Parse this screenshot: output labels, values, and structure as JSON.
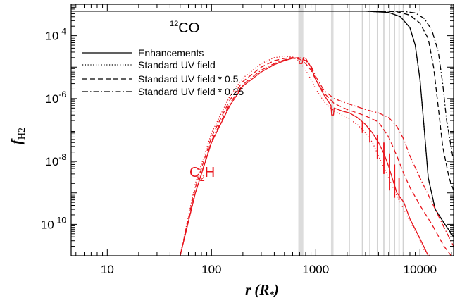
{
  "chart_data": {
    "type": "line",
    "xscale": "log",
    "yscale": "log",
    "xlim": [
      4.5,
      21000
    ],
    "ylim": [
      1e-11,
      0.001
    ],
    "xlabel": "r (R*)",
    "ylabel": "fH2",
    "xlabel_main": "r",
    "xlabel_paren_open": "(",
    "xlabel_sym": "R",
    "xlabel_sub": "*",
    "xlabel_paren_close": ")",
    "ylabel_main": "f",
    "ylabel_sub": "H2",
    "x_ticks": [
      {
        "value": 10,
        "label": "10"
      },
      {
        "value": 100,
        "label": "100"
      },
      {
        "value": 1000,
        "label": "1000"
      },
      {
        "value": 10000,
        "label": "10000"
      }
    ],
    "y_ticks": [
      {
        "value": 1e-10,
        "base": "10",
        "exp": "-10"
      },
      {
        "value": 1e-08,
        "base": "10",
        "exp": "-8"
      },
      {
        "value": 1e-06,
        "base": "10",
        "exp": "-6"
      },
      {
        "value": 0.0001,
        "base": "10",
        "exp": "-4"
      }
    ],
    "annotations": {
      "co_label_sup": "12",
      "co_label_main": "CO",
      "c2h_label_main": "C",
      "c2h_label_sub": "2",
      "c2h_label_end": "H",
      "c2h_color": "#e8141c",
      "co_color": "#000000"
    },
    "legend": {
      "placement": "top-left",
      "entries": [
        {
          "label": "Enhancements",
          "dash": "solid"
        },
        {
          "label": "Standard UV field",
          "dash": "dotted"
        },
        {
          "label": "Standard UV field * 0.5",
          "dash": "dashed"
        },
        {
          "label": "Standard UV field * 0.25",
          "dash": "dashdot"
        }
      ]
    },
    "shaded_bands": [
      [
        680,
        760
      ],
      [
        1400,
        1480
      ]
    ],
    "vertical_lines": [
      2100,
      2800,
      3300,
      3900,
      4500,
      5100,
      5700,
      6300,
      6900
    ],
    "series": [
      {
        "species": "12CO",
        "dash": "solid",
        "color": "#000000",
        "points": [
          [
            4.5,
            0.0006
          ],
          [
            3000,
            0.0006
          ],
          [
            5000,
            0.00055
          ],
          [
            6500,
            0.0004
          ],
          [
            8000,
            0.00018
          ],
          [
            9000,
            5e-05
          ],
          [
            10000,
            4e-06
          ],
          [
            11000,
            1e-07
          ],
          [
            12000,
            3e-09
          ],
          [
            14000,
            3e-10
          ],
          [
            17000,
            1.1e-10
          ],
          [
            21000,
            4e-11
          ]
        ]
      },
      {
        "species": "12CO",
        "dash": "dotted",
        "color": "#000000",
        "points": [
          [
            4.5,
            0.0006
          ],
          [
            3000,
            0.0006
          ],
          [
            5000,
            0.00055
          ],
          [
            6500,
            0.0004
          ],
          [
            8000,
            0.00018
          ],
          [
            9000,
            5e-05
          ],
          [
            10000,
            4e-06
          ],
          [
            11000,
            1e-07
          ],
          [
            12000,
            3e-09
          ],
          [
            14000,
            3e-10
          ],
          [
            17000,
            1.1e-10
          ],
          [
            21000,
            4e-11
          ]
        ]
      },
      {
        "species": "12CO",
        "dash": "dashed",
        "color": "#000000",
        "points": [
          [
            4.5,
            0.0006
          ],
          [
            4000,
            0.0006
          ],
          [
            6000,
            0.00058
          ],
          [
            8000,
            0.00045
          ],
          [
            10000,
            0.00025
          ],
          [
            12000,
            8e-05
          ],
          [
            13500,
            1e-05
          ],
          [
            15000,
            5e-07
          ],
          [
            16500,
            3e-08
          ],
          [
            19000,
            3e-09
          ],
          [
            21000,
            1.2e-09
          ]
        ]
      },
      {
        "species": "12CO",
        "dash": "dashdot",
        "color": "#000000",
        "points": [
          [
            4.5,
            0.0006
          ],
          [
            5000,
            0.0006
          ],
          [
            7000,
            0.00059
          ],
          [
            9000,
            0.00053
          ],
          [
            11000,
            0.00035
          ],
          [
            13000,
            0.00015
          ],
          [
            15000,
            3e-05
          ],
          [
            16500,
            3e-06
          ],
          [
            18000,
            2e-07
          ],
          [
            21000,
            1e-08
          ]
        ]
      },
      {
        "species": "C2H",
        "dash": "solid",
        "color": "#e8141c",
        "points": [
          [
            50,
            1e-11
          ],
          [
            70,
            1e-09
          ],
          [
            100,
            4e-08
          ],
          [
            150,
            6e-07
          ],
          [
            200,
            2.5e-06
          ],
          [
            300,
            7e-06
          ],
          [
            400,
            1.2e-05
          ],
          [
            500,
            1.6e-05
          ],
          [
            600,
            1.9e-05
          ],
          [
            680,
            2e-05
          ],
          [
            700,
            1.3e-05
          ],
          [
            740,
            1.3e-05
          ],
          [
            760,
            2e-05
          ],
          [
            800,
            1.9e-05
          ],
          [
            900,
            1e-05
          ],
          [
            1000,
            4e-06
          ],
          [
            1200,
            1.3e-06
          ],
          [
            1400,
            6e-07
          ],
          [
            1420,
            3e-07
          ],
          [
            1480,
            3e-07
          ],
          [
            1500,
            5e-07
          ],
          [
            1800,
            4e-07
          ],
          [
            2100,
            3.5e-07
          ],
          [
            2500,
            2.5e-07
          ],
          [
            3000,
            1.5e-07
          ],
          [
            3500,
            8e-08
          ],
          [
            4000,
            4e-08
          ],
          [
            4500,
            1.8e-08
          ],
          [
            5000,
            7e-09
          ],
          [
            5500,
            2.5e-09
          ],
          [
            6000,
            1e-09
          ],
          [
            6500,
            7e-10
          ],
          [
            7000,
            5e-10
          ],
          [
            8000,
            1.5e-10
          ],
          [
            10000,
            3.5e-11
          ],
          [
            12000,
            1e-11
          ]
        ]
      },
      {
        "species": "C2H",
        "dash": "dotted",
        "color": "#e8141c",
        "points": [
          [
            50,
            1e-11
          ],
          [
            70,
            2e-09
          ],
          [
            100,
            8e-08
          ],
          [
            150,
            1.2e-06
          ],
          [
            200,
            4.5e-06
          ],
          [
            300,
            1.3e-05
          ],
          [
            400,
            2e-05
          ],
          [
            500,
            2.2e-05
          ],
          [
            600,
            2.1e-05
          ],
          [
            700,
            1.5e-05
          ],
          [
            800,
            8e-06
          ],
          [
            900,
            4e-06
          ],
          [
            1000,
            2e-06
          ],
          [
            1200,
            8e-07
          ],
          [
            1500,
            4e-07
          ],
          [
            2000,
            2.5e-07
          ],
          [
            2500,
            1.5e-07
          ],
          [
            3000,
            8e-08
          ],
          [
            3500,
            4e-08
          ],
          [
            4000,
            1.5e-08
          ],
          [
            5000,
            3e-09
          ],
          [
            6000,
            8e-10
          ],
          [
            7000,
            3e-10
          ],
          [
            9000,
            6e-11
          ],
          [
            11000,
            1.5e-11
          ],
          [
            12500,
            1e-11
          ]
        ]
      },
      {
        "species": "C2H",
        "dash": "dashed",
        "color": "#e8141c",
        "points": [
          [
            50,
            1e-11
          ],
          [
            70,
            1.5e-09
          ],
          [
            100,
            6e-08
          ],
          [
            150,
            9e-07
          ],
          [
            200,
            3.5e-06
          ],
          [
            300,
            1e-05
          ],
          [
            400,
            1.6e-05
          ],
          [
            500,
            1.9e-05
          ],
          [
            600,
            2e-05
          ],
          [
            700,
            1.8e-05
          ],
          [
            800,
            1.3e-05
          ],
          [
            900,
            8e-06
          ],
          [
            1000,
            4e-06
          ],
          [
            1200,
            1.5e-06
          ],
          [
            1500,
            7e-07
          ],
          [
            2000,
            4.5e-07
          ],
          [
            2500,
            3.5e-07
          ],
          [
            3000,
            2.8e-07
          ],
          [
            4000,
            1.8e-07
          ],
          [
            5000,
            6e-08
          ],
          [
            6000,
            1.5e-08
          ],
          [
            7000,
            4e-09
          ],
          [
            8000,
            1.5e-09
          ],
          [
            10000,
            4e-10
          ],
          [
            13000,
            1e-10
          ],
          [
            17000,
            2e-11
          ],
          [
            21000,
            8e-12
          ]
        ]
      },
      {
        "species": "C2H",
        "dash": "dashdot",
        "color": "#e8141c",
        "points": [
          [
            50,
            1e-11
          ],
          [
            70,
            1e-09
          ],
          [
            100,
            4.5e-08
          ],
          [
            150,
            7e-07
          ],
          [
            200,
            2.8e-06
          ],
          [
            300,
            8e-06
          ],
          [
            400,
            1.3e-05
          ],
          [
            500,
            1.7e-05
          ],
          [
            600,
            1.9e-05
          ],
          [
            700,
            2e-05
          ],
          [
            800,
            1.6e-05
          ],
          [
            900,
            1.1e-05
          ],
          [
            1000,
            5e-06
          ],
          [
            1200,
            1.8e-06
          ],
          [
            1500,
            1e-06
          ],
          [
            2000,
            7e-07
          ],
          [
            2500,
            5.5e-07
          ],
          [
            3000,
            4.5e-07
          ],
          [
            4000,
            3.5e-07
          ],
          [
            5000,
            2.5e-07
          ],
          [
            6000,
            1.3e-07
          ],
          [
            7000,
            5e-08
          ],
          [
            8000,
            1.5e-08
          ],
          [
            10000,
            3e-09
          ],
          [
            13000,
            5e-10
          ],
          [
            17000,
            8e-11
          ],
          [
            21000,
            2e-11
          ]
        ]
      }
    ],
    "spikes": [
      [
        2800,
        1.8e-07,
        8e-08
      ],
      [
        3300,
        1.2e-07,
        4e-08
      ],
      [
        3900,
        7e-08,
        1.2e-08
      ],
      [
        4500,
        4e-08,
        4e-09
      ],
      [
        5100,
        1.8e-08,
        1.2e-09
      ],
      [
        5700,
        8e-09,
        7e-10
      ],
      [
        6300,
        3e-09,
        6e-10
      ]
    ]
  }
}
